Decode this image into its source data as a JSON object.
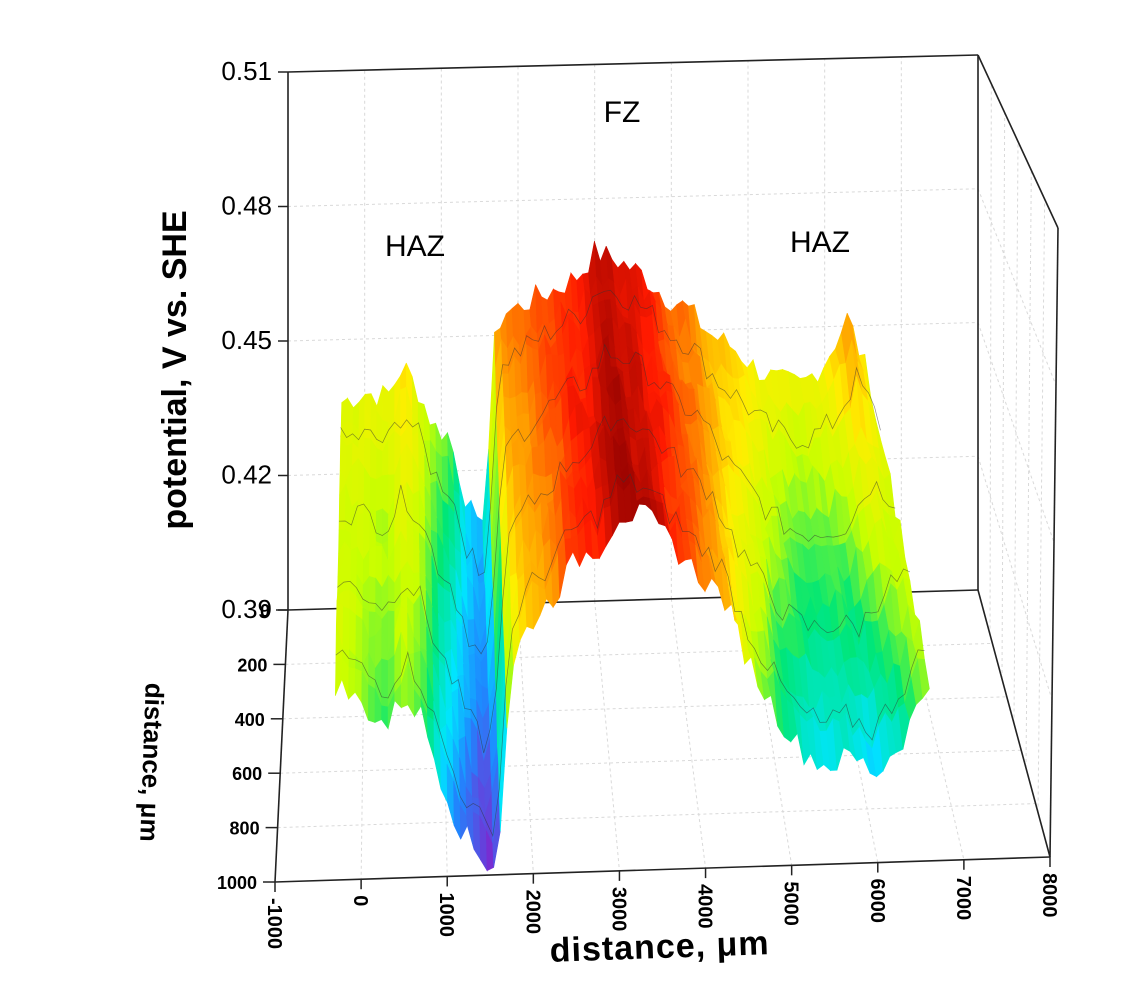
{
  "chart_data": {
    "type": "surface3d",
    "title": "",
    "xlabel": "distance, μm",
    "ylabel": "distance, μm",
    "zlabel": "potential, V vs. SHE",
    "xlim": [
      -1000,
      8000
    ],
    "ylim": [
      0,
      1000
    ],
    "zlim": [
      0.39,
      0.51
    ],
    "x_ticks": [
      "-1000",
      "0",
      "1000",
      "2000",
      "3000",
      "4000",
      "5000",
      "6000",
      "7000",
      "8000"
    ],
    "y_ticks": [
      "0",
      "200",
      "400",
      "600",
      "800",
      "1000"
    ],
    "z_ticks": [
      "0.51",
      "0.48",
      "0.45",
      "0.42",
      "0.39"
    ],
    "annotations": [
      {
        "text": "HAZ",
        "x": 500,
        "z": 0.475
      },
      {
        "text": "FZ",
        "x": 3000,
        "z": 0.503
      },
      {
        "text": "HAZ",
        "x": 5300,
        "z": 0.478
      }
    ],
    "profile": {
      "x": [
        -300,
        0,
        300,
        500,
        700,
        900,
        1100,
        1300,
        1500,
        1600,
        1700,
        1800,
        2000,
        2200,
        2500,
        2800,
        3000,
        3300,
        3600,
        3900,
        4200,
        4500,
        4800,
        5100,
        5400,
        5700,
        6000,
        6300,
        6600
      ],
      "z_front": [
        0.434,
        0.429,
        0.424,
        0.431,
        0.426,
        0.414,
        0.403,
        0.396,
        0.392,
        0.395,
        0.426,
        0.44,
        0.447,
        0.451,
        0.46,
        0.463,
        0.47,
        0.469,
        0.463,
        0.456,
        0.451,
        0.436,
        0.425,
        0.416,
        0.412,
        0.414,
        0.41,
        0.418,
        0.43
      ],
      "z_back": [
        0.436,
        0.438,
        0.437,
        0.444,
        0.438,
        0.43,
        0.428,
        0.415,
        0.405,
        0.42,
        0.45,
        0.455,
        0.456,
        0.458,
        0.46,
        0.463,
        0.468,
        0.466,
        0.463,
        0.458,
        0.455,
        0.449,
        0.446,
        0.441,
        0.438,
        0.437,
        0.442,
        0.452,
        0.437
      ]
    },
    "colormap": [
      "#7a2bd1",
      "#1e88ff",
      "#00e5ff",
      "#00e676",
      "#c6ff00",
      "#ffee00",
      "#ff9800",
      "#ff1a00",
      "#8b0000"
    ],
    "grid": true
  }
}
